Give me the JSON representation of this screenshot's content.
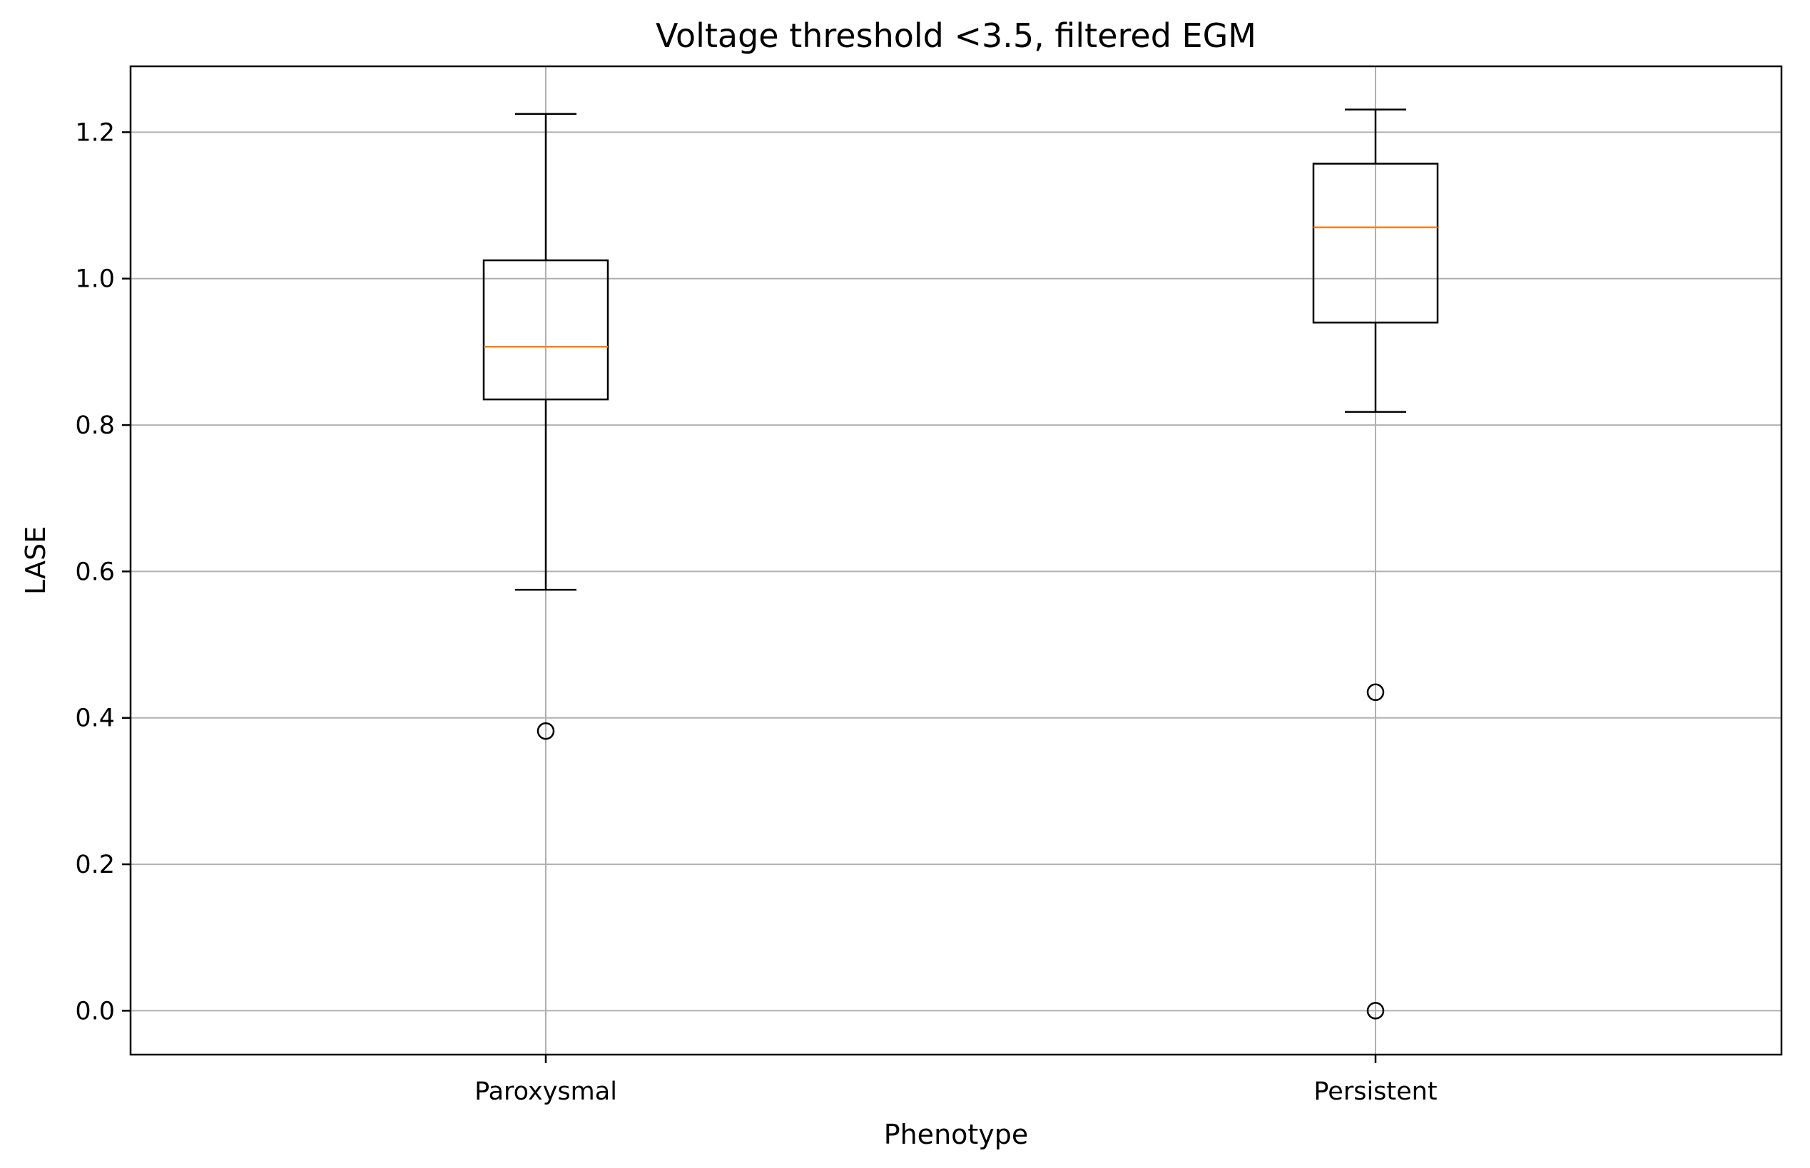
{
  "chart_data": {
    "type": "box",
    "title": "Voltage threshold <3.5, filtered EGM",
    "xlabel": "Phenotype",
    "ylabel": "LASE",
    "categories": [
      "Paroxysmal",
      "Persistent"
    ],
    "ylim": [
      -0.06,
      1.29
    ],
    "yticks": [
      0.0,
      0.2,
      0.4,
      0.6,
      0.8,
      1.0,
      1.2
    ],
    "ytick_labels": [
      "0.0",
      "0.2",
      "0.4",
      "0.6",
      "0.8",
      "1.0",
      "1.2"
    ],
    "grid": true,
    "boxes": [
      {
        "category": "Paroxysmal",
        "whisker_low": 0.575,
        "q1": 0.835,
        "median": 0.907,
        "q3": 1.025,
        "whisker_high": 1.225,
        "outliers": [
          0.382
        ]
      },
      {
        "category": "Persistent",
        "whisker_low": 0.818,
        "q1": 0.94,
        "median": 1.07,
        "q3": 1.157,
        "whisker_high": 1.231,
        "outliers": [
          0.435,
          0.0
        ]
      }
    ],
    "colors": {
      "box": "#000000",
      "median": "#ff7f0e",
      "grid": "#b0b0b0",
      "outlier": "#000000"
    }
  }
}
